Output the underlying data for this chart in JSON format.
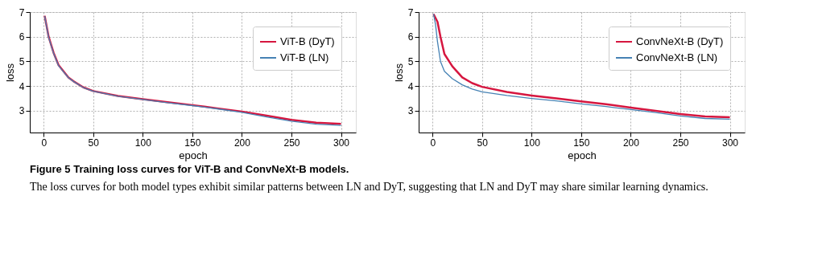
{
  "chart_data": [
    {
      "type": "line",
      "xlabel": "epoch",
      "ylabel": "loss",
      "xlim": [
        -14,
        315
      ],
      "ylim": [
        2.12,
        7
      ],
      "xticks": [
        0,
        50,
        100,
        150,
        200,
        250,
        300
      ],
      "yticks": [
        3,
        4,
        5,
        6,
        7
      ],
      "grid": true,
      "legend": "top right",
      "marker": "none",
      "line_style": "solid",
      "x": [
        1,
        5,
        10,
        15,
        20,
        25,
        30,
        40,
        50,
        75,
        100,
        125,
        150,
        175,
        200,
        225,
        250,
        275,
        300
      ],
      "series": [
        {
          "name": "ViT-B (DyT)",
          "color": "#d6163f",
          "values": [
            6.85,
            6.0,
            5.35,
            4.85,
            4.6,
            4.35,
            4.2,
            3.95,
            3.8,
            3.6,
            3.47,
            3.35,
            3.23,
            3.1,
            2.97,
            2.8,
            2.63,
            2.52,
            2.47
          ]
        },
        {
          "name": "ViT-B (LN)",
          "color": "#4682b4",
          "values": [
            6.83,
            5.98,
            5.33,
            4.83,
            4.58,
            4.34,
            4.19,
            3.94,
            3.79,
            3.59,
            3.46,
            3.33,
            3.21,
            3.08,
            2.94,
            2.75,
            2.58,
            2.46,
            2.41
          ]
        }
      ]
    },
    {
      "type": "line",
      "xlabel": "epoch",
      "ylabel": "loss",
      "xlim": [
        -14,
        315
      ],
      "ylim": [
        2.12,
        7
      ],
      "xticks": [
        0,
        50,
        100,
        150,
        200,
        250,
        300
      ],
      "yticks": [
        3,
        4,
        5,
        6,
        7
      ],
      "grid": true,
      "legend": "top right",
      "marker": "none",
      "line_style": "solid",
      "series": [
        {
          "name": "ConvNeXt-B (DyT)",
          "color": "#d6163f",
          "x": [
            1,
            5,
            8,
            12,
            20,
            30,
            40,
            50,
            75,
            100,
            125,
            150,
            175,
            200,
            225,
            250,
            275,
            300
          ],
          "values": [
            6.92,
            6.6,
            6.0,
            5.3,
            4.8,
            4.35,
            4.12,
            3.97,
            3.76,
            3.62,
            3.5,
            3.38,
            3.27,
            3.13,
            3.0,
            2.87,
            2.77,
            2.74
          ]
        },
        {
          "name": "ConvNeXt-B (LN)",
          "color": "#4682b4",
          "x": [
            1,
            3,
            5,
            8,
            12,
            20,
            30,
            40,
            50,
            75,
            100,
            125,
            150,
            175,
            200,
            225,
            250,
            275,
            300
          ],
          "values": [
            6.92,
            6.5,
            5.8,
            5.0,
            4.6,
            4.3,
            4.05,
            3.88,
            3.77,
            3.62,
            3.5,
            3.4,
            3.28,
            3.17,
            3.05,
            2.93,
            2.79,
            2.69,
            2.66
          ]
        }
      ],
      "annotations": [
        "Figure 5  Training loss curves for ViT-B and ConvNeXt-B models.",
        "The loss curves for both model types exhibit similar patterns between LN and DyT, suggesting that LN and DyT may share similar learning dynamics."
      ]
    }
  ]
}
